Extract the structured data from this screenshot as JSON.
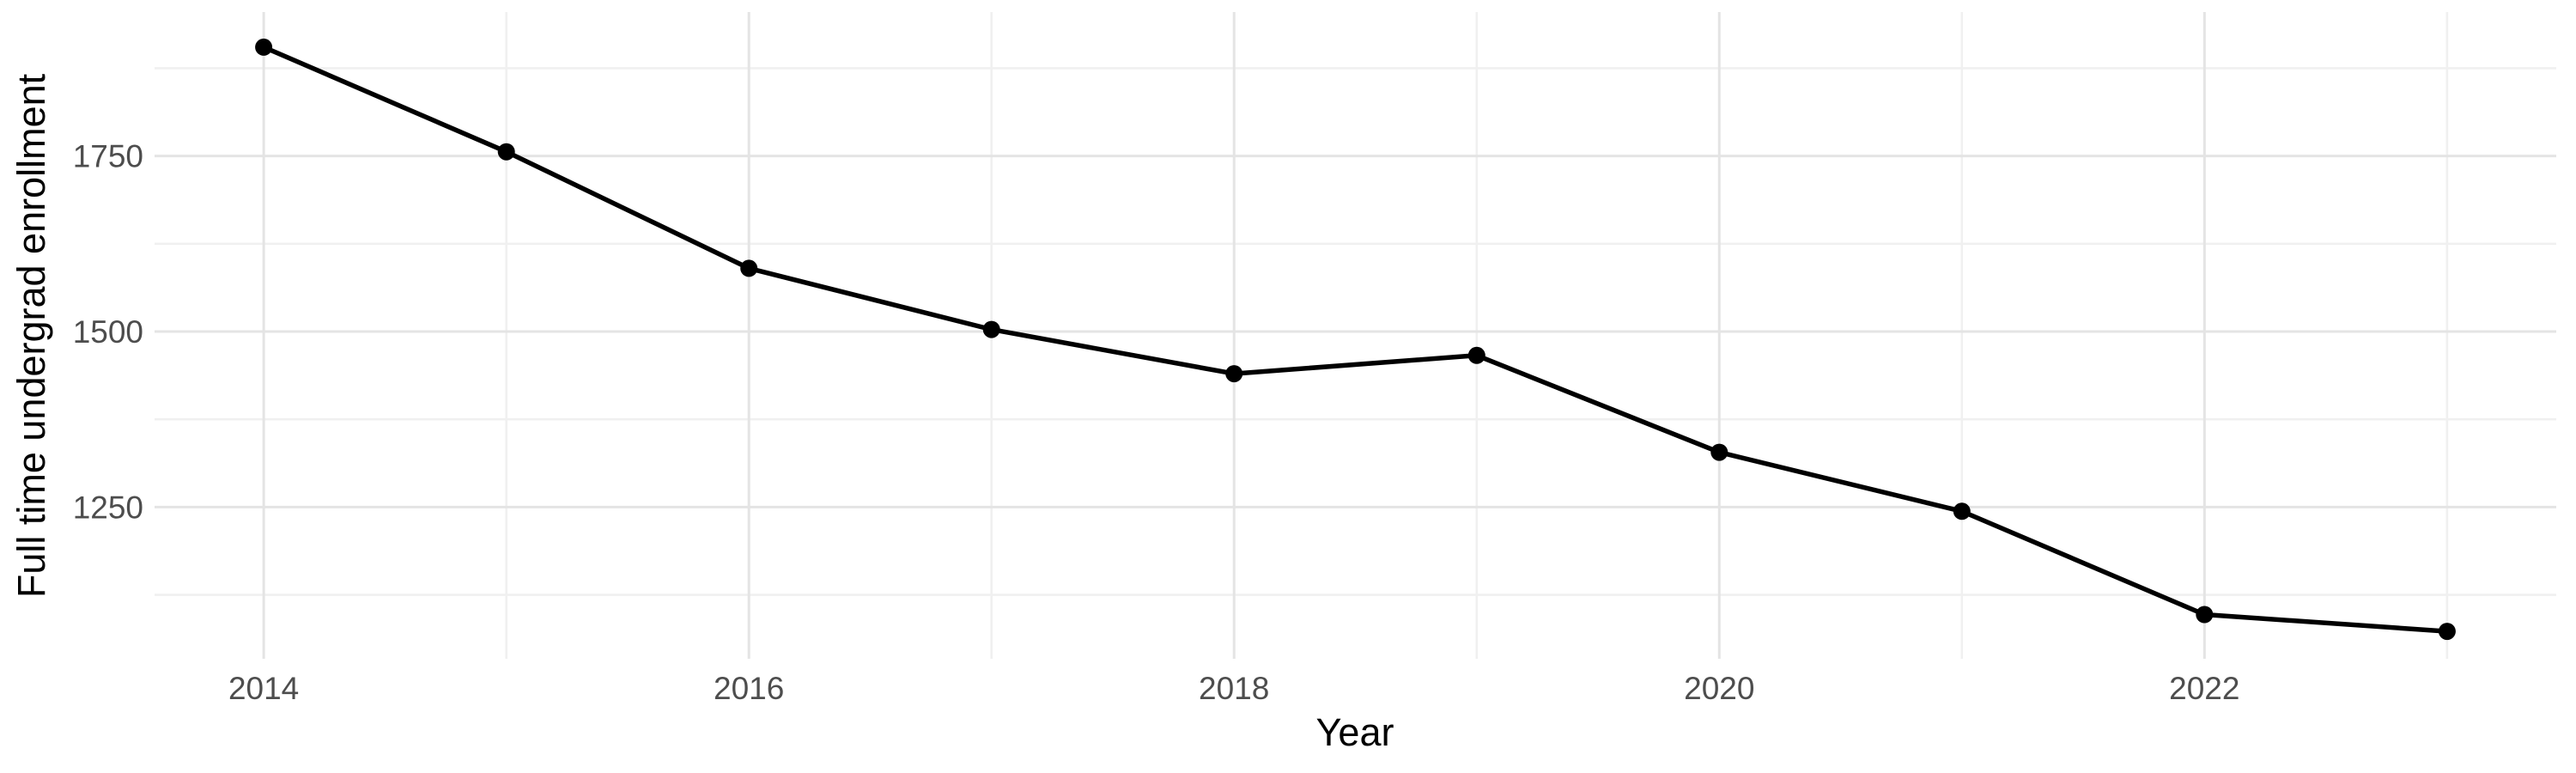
{
  "chart_data": {
    "type": "line",
    "title": "",
    "xlabel": "Year",
    "ylabel": "Full time undergrad enrollment",
    "x": [
      2014,
      2015,
      2016,
      2017,
      2018,
      2019,
      2020,
      2021,
      2022,
      2023
    ],
    "series": [
      {
        "name": "Full time undergrad enrollment",
        "values": [
          1905,
          1756,
          1590,
          1503,
          1440,
          1466,
          1328,
          1244,
          1097,
          1073
        ]
      }
    ],
    "x_tick_labels": [
      "2014",
      "2016",
      "2018",
      "2020",
      "2022"
    ],
    "x_major_breaks": [
      2014,
      2016,
      2018,
      2020,
      2022
    ],
    "x_minor_breaks": [
      2015,
      2017,
      2019,
      2021,
      2023
    ],
    "y_tick_labels": [
      "1250",
      "1500",
      "1750"
    ],
    "y_major_breaks": [
      1250,
      1500,
      1750
    ],
    "y_minor_breaks": [
      1125,
      1375,
      1625,
      1875
    ],
    "xlim": [
      2013.55,
      2023.45
    ],
    "ylim": [
      1034,
      1955
    ],
    "grid": "on",
    "legend": "none",
    "style": {
      "background": "#FFFFFF",
      "line_color": "#000000",
      "point_color": "#000000",
      "major_grid_color": "#E4E4E4",
      "minor_grid_color": "#F0F0F0",
      "tick_label_color": "#4D4D4D",
      "axis_title_color": "#000000"
    }
  }
}
